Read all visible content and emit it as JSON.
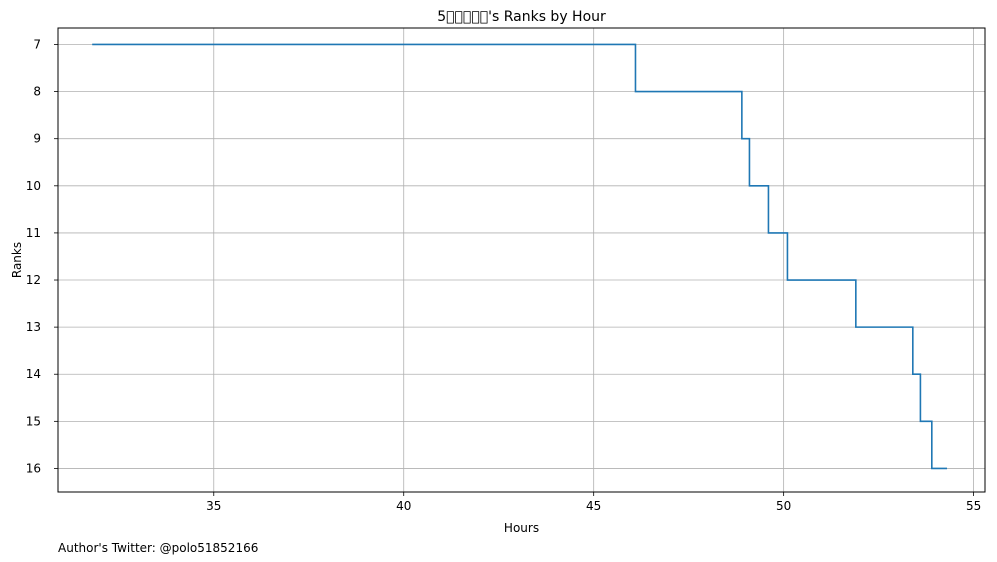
{
  "chart_data": {
    "type": "line",
    "step": true,
    "title": "5\u0000\u0000\u0000\u0000\u0000's Ranks by Hour",
    "xlabel": "Hours",
    "ylabel": "Ranks",
    "xlim": [
      30.9,
      55.3
    ],
    "ylim": [
      16.5,
      6.65
    ],
    "y_inverted": true,
    "grid": true,
    "xticks": [
      35,
      40,
      45,
      50,
      55
    ],
    "yticks": [
      7,
      8,
      9,
      10,
      11,
      12,
      13,
      14,
      15,
      16
    ],
    "line_color": "#1f77b4",
    "series": [
      {
        "x": [
          31.8,
          46.1,
          48.9,
          49.1,
          49.6,
          50.1,
          51.9,
          53.4,
          53.6,
          53.9,
          54.3
        ],
        "y": [
          7,
          8,
          9,
          10,
          11,
          12,
          13,
          14,
          15,
          16,
          16
        ]
      }
    ]
  },
  "footer": {
    "credit": "Author's Twitter: @polo51852166"
  }
}
